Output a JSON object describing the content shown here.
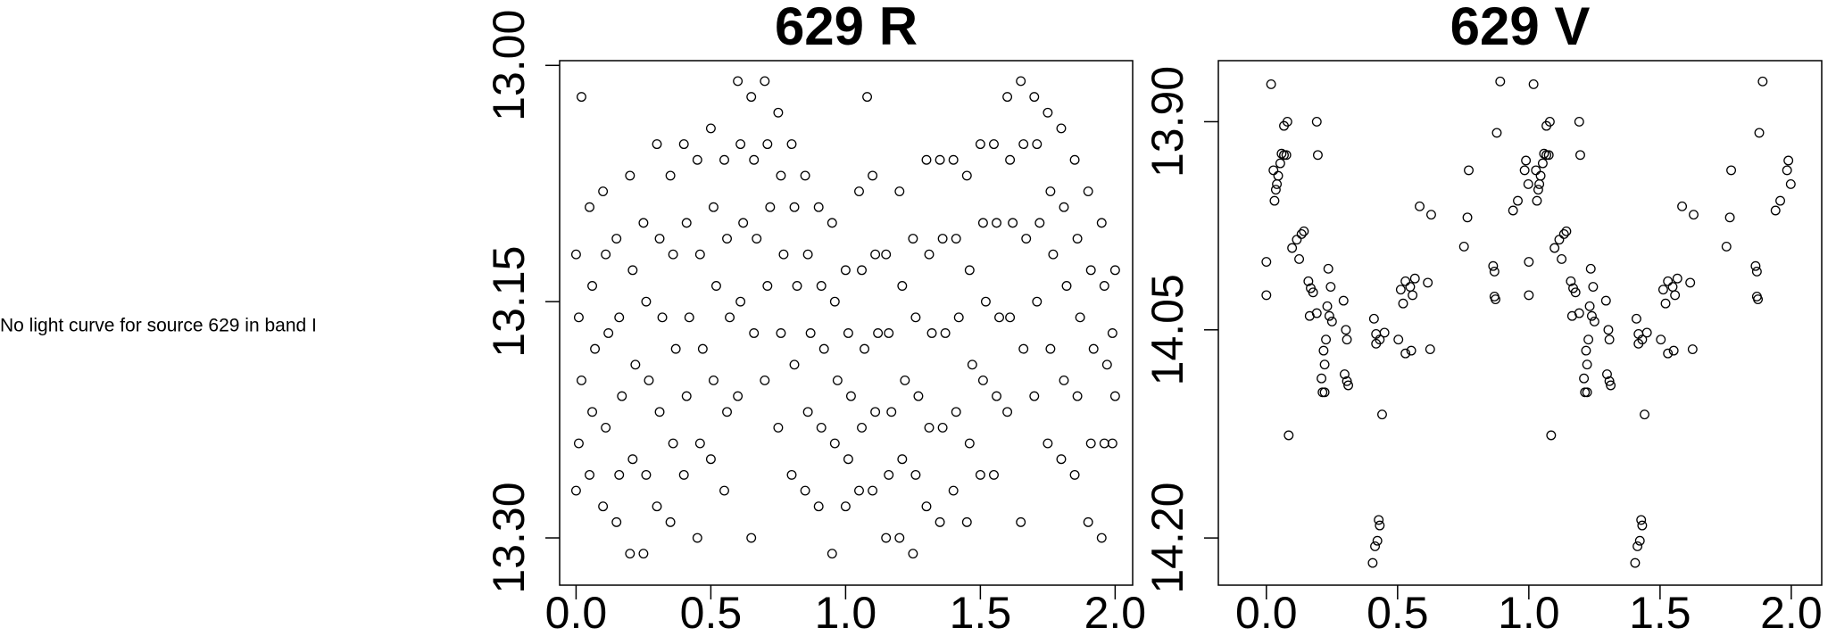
{
  "message": "No light curve for source 629 in band I",
  "chart_data": [
    {
      "type": "scatter",
      "title": "629 R",
      "color": "#000000",
      "xlim": [
        -0.061,
        2.065
      ],
      "ylim": [
        13.33,
        12.997
      ],
      "xticks": [
        {
          "value": 0,
          "label": "0.0"
        },
        0.5,
        {
          "value": 1,
          "label": "1.0"
        },
        1.5,
        {
          "value": 2,
          "label": "2.0"
        }
      ],
      "yticks": [
        {
          "value": 13,
          "label": "13.00"
        },
        13.15,
        {
          "value": 13.3,
          "label": "13.30"
        }
      ],
      "x": [
        0,
        0.01,
        0.02,
        0.01,
        0,
        0.05,
        0.06,
        0.07,
        0.06,
        0.05,
        0.1,
        0.11,
        0.12,
        0.11,
        0.1,
        0.15,
        0.16,
        0.17,
        0.16,
        0.15,
        0.2,
        0.21,
        0.22,
        0.21,
        0.2,
        0.25,
        0.26,
        0.27,
        0.26,
        0.25,
        0.3,
        0.31,
        0.32,
        0.31,
        0.3,
        0.35,
        0.36,
        0.37,
        0.36,
        0.35,
        0.4,
        0.41,
        0.42,
        0.41,
        0.4,
        0.45,
        0.46,
        0.47,
        0.46,
        0.45,
        0.5,
        0.51,
        0.52,
        0.51,
        0.5,
        0.55,
        0.56,
        0.57,
        0.56,
        0.55,
        0.6,
        0.61,
        0.62,
        0.61,
        0.6,
        0.65,
        0.66,
        0.67,
        0.66,
        0.65,
        0.7,
        0.71,
        0.72,
        0.71,
        0.7,
        0.75,
        0.76,
        0.77,
        0.76,
        0.75,
        0.8,
        0.81,
        0.82,
        0.81,
        0.8,
        0.85,
        0.86,
        0.87,
        0.86,
        0.85,
        0.9,
        0.91,
        0.92,
        0.91,
        0.9,
        0.95,
        0.96,
        0.97,
        0.96,
        0.95,
        1,
        1.01,
        1.02,
        1.01,
        1,
        1.05,
        1.06,
        1.07,
        1.06,
        1.05,
        1.1,
        1.11,
        1.12,
        1.11,
        1.1,
        1.15,
        1.16,
        1.17,
        1.16,
        1.15,
        1.2,
        1.21,
        1.22,
        1.21,
        1.2,
        1.25,
        1.26,
        1.27,
        1.26,
        1.25,
        1.3,
        1.31,
        1.32,
        1.31,
        1.3,
        1.35,
        1.36,
        1.37,
        1.36,
        1.35,
        1.4,
        1.41,
        1.42,
        1.41,
        1.4,
        1.45,
        1.46,
        1.47,
        1.46,
        1.45,
        1.5,
        1.51,
        1.52,
        1.51,
        1.5,
        1.55,
        1.56,
        1.57,
        1.56,
        1.55,
        1.6,
        1.61,
        1.62,
        1.61,
        1.6,
        1.65,
        1.66,
        1.67,
        1.66,
        1.65,
        1.7,
        1.71,
        1.72,
        1.71,
        1.7,
        1.75,
        1.76,
        1.77,
        1.76,
        1.75,
        1.8,
        1.81,
        1.82,
        1.81,
        1.8,
        1.85,
        1.86,
        1.87,
        1.86,
        1.85,
        1.9,
        1.91,
        1.92,
        1.91,
        1.9,
        1.95,
        1.96,
        1.97,
        1.96,
        1.95,
        2,
        1.99,
        2,
        1.99,
        0.02,
        1.08
      ],
      "y": [
        13.12,
        13.16,
        13.2,
        13.24,
        13.27,
        13.09,
        13.14,
        13.18,
        13.22,
        13.26,
        13.08,
        13.12,
        13.17,
        13.23,
        13.28,
        13.11,
        13.16,
        13.21,
        13.26,
        13.29,
        13.07,
        13.13,
        13.19,
        13.25,
        13.31,
        13.1,
        13.15,
        13.2,
        13.26,
        13.31,
        13.05,
        13.11,
        13.16,
        13.22,
        13.28,
        13.07,
        13.12,
        13.18,
        13.24,
        13.29,
        13.05,
        13.1,
        13.16,
        13.21,
        13.26,
        13.06,
        13.12,
        13.18,
        13.24,
        13.3,
        13.04,
        13.09,
        13.14,
        13.2,
        13.25,
        13.06,
        13.11,
        13.16,
        13.22,
        13.27,
        13.01,
        13.05,
        13.1,
        13.15,
        13.21,
        13.02,
        13.06,
        13.11,
        13.17,
        13.3,
        13.01,
        13.05,
        13.09,
        13.14,
        13.2,
        13.03,
        13.07,
        13.12,
        13.17,
        13.23,
        13.05,
        13.09,
        13.14,
        13.19,
        13.26,
        13.07,
        13.12,
        13.17,
        13.22,
        13.27,
        13.09,
        13.14,
        13.18,
        13.23,
        13.28,
        13.1,
        13.15,
        13.2,
        13.24,
        13.31,
        13.13,
        13.17,
        13.21,
        13.25,
        13.28,
        13.08,
        13.13,
        13.18,
        13.23,
        13.27,
        13.07,
        13.12,
        13.17,
        13.22,
        13.27,
        13.12,
        13.17,
        13.22,
        13.26,
        13.3,
        13.08,
        13.14,
        13.2,
        13.25,
        13.3,
        13.11,
        13.16,
        13.21,
        13.26,
        13.31,
        13.06,
        13.12,
        13.17,
        13.23,
        13.28,
        13.06,
        13.11,
        13.17,
        13.23,
        13.29,
        13.06,
        13.11,
        13.16,
        13.22,
        13.27,
        13.07,
        13.13,
        13.19,
        13.24,
        13.29,
        13.05,
        13.1,
        13.15,
        13.2,
        13.26,
        13.05,
        13.1,
        13.16,
        13.21,
        13.26,
        13.02,
        13.06,
        13.1,
        13.16,
        13.22,
        13.01,
        13.05,
        13.11,
        13.18,
        13.29,
        13.02,
        13.05,
        13.1,
        13.15,
        13.21,
        13.03,
        13.08,
        13.12,
        13.18,
        13.24,
        13.04,
        13.09,
        13.14,
        13.2,
        13.25,
        13.06,
        13.11,
        13.16,
        13.21,
        13.26,
        13.08,
        13.13,
        13.18,
        13.24,
        13.29,
        13.1,
        13.14,
        13.19,
        13.24,
        13.3,
        13.13,
        13.17,
        13.21,
        13.24,
        13.02,
        13.02
      ]
    },
    {
      "type": "scatter",
      "title": "629 V",
      "color": "#000000",
      "xlim": [
        -0.183,
        2.116
      ],
      "ylim": [
        14.234,
        13.856
      ],
      "xticks": [
        {
          "value": 0,
          "label": "0.0"
        },
        0.5,
        {
          "value": 1,
          "label": "1.0"
        },
        1.5,
        {
          "value": 2,
          "label": "2.0"
        }
      ],
      "yticks": [
        {
          "value": 13.9,
          "label": "13.90"
        },
        14.05,
        {
          "value": 14.2,
          "label": "14.20"
        }
      ],
      "x": [
        0,
        0,
        0.018,
        0.027,
        0.036,
        0.031,
        0.045,
        0.053,
        0.058,
        0.067,
        0.04,
        0.067,
        0.085,
        0.076,
        0.08,
        0.098,
        0.116,
        0.134,
        0.143,
        0.125,
        0.16,
        0.169,
        0.178,
        0.165,
        0.192,
        0.192,
        0.196,
        0.21,
        0.218,
        0.222,
        0.214,
        0.222,
        0.236,
        0.232,
        0.24,
        0.245,
        0.25,
        0.227,
        0.294,
        0.303,
        0.298,
        0.307,
        0.312,
        0.307,
        0.41,
        0.418,
        0.432,
        0.45,
        0.418,
        0.441,
        0.428,
        0.432,
        0.423,
        0.414,
        0.405,
        0.503,
        0.512,
        0.521,
        0.53,
        0.548,
        0.566,
        0.557,
        0.53,
        0.552,
        0.584,
        0.615,
        0.628,
        0.624,
        0.753,
        0.766,
        0.771,
        0.864,
        0.869,
        0.869,
        0.873,
        0.878,
        0.891,
        0.94,
        0.958,
        0.984,
        0.998,
        0.989,
        1,
        1,
        1.018,
        1.027,
        1.036,
        1.031,
        1.045,
        1.053,
        1.058,
        1.067,
        1.04,
        1.067,
        1.085,
        1.076,
        1.08,
        1.098,
        1.116,
        1.134,
        1.143,
        1.125,
        1.16,
        1.169,
        1.178,
        1.165,
        1.192,
        1.192,
        1.196,
        1.21,
        1.218,
        1.222,
        1.214,
        1.222,
        1.236,
        1.232,
        1.24,
        1.245,
        1.25,
        1.227,
        1.294,
        1.303,
        1.298,
        1.307,
        1.312,
        1.307,
        1.41,
        1.418,
        1.432,
        1.45,
        1.418,
        1.441,
        1.428,
        1.432,
        1.423,
        1.414,
        1.405,
        1.503,
        1.512,
        1.521,
        1.53,
        1.548,
        1.566,
        1.557,
        1.53,
        1.552,
        1.584,
        1.615,
        1.628,
        1.624,
        1.753,
        1.766,
        1.771,
        1.864,
        1.869,
        1.869,
        1.873,
        1.878,
        1.891,
        1.94,
        1.958,
        1.984,
        1.998,
        1.989
      ],
      "y": [
        14.001,
        14.025,
        13.873,
        13.935,
        13.949,
        13.957,
        13.939,
        13.93,
        13.923,
        13.903,
        13.945,
        13.924,
        14.126,
        13.924,
        13.9,
        13.991,
        13.985,
        13.981,
        13.979,
        13.999,
        14.015,
        14.02,
        14.023,
        14.04,
        14.038,
        13.9,
        13.924,
        14.085,
        14.065,
        14.075,
        14.095,
        14.095,
        14.006,
        14.033,
        14.04,
        14.019,
        14.044,
        14.057,
        14.029,
        14.05,
        14.082,
        14.087,
        14.09,
        14.057,
        14.042,
        14.053,
        14.057,
        14.052,
        14.06,
        14.111,
        14.187,
        14.191,
        14.202,
        14.206,
        14.218,
        14.057,
        14.021,
        14.031,
        14.015,
        14.019,
        14.013,
        14.025,
        14.067,
        14.065,
        13.961,
        14.016,
        13.967,
        14.064,
        13.99,
        13.969,
        13.935,
        14.004,
        14.008,
        14.026,
        14.028,
        13.908,
        13.871,
        13.964,
        13.957,
        13.935,
        13.945,
        13.928,
        14.001,
        14.025,
        13.873,
        13.935,
        13.949,
        13.957,
        13.939,
        13.93,
        13.923,
        13.903,
        13.945,
        13.924,
        14.126,
        13.924,
        13.9,
        13.991,
        13.985,
        13.981,
        13.979,
        13.999,
        14.015,
        14.02,
        14.023,
        14.04,
        14.038,
        13.9,
        13.924,
        14.085,
        14.065,
        14.075,
        14.095,
        14.095,
        14.006,
        14.033,
        14.04,
        14.019,
        14.044,
        14.057,
        14.029,
        14.05,
        14.082,
        14.087,
        14.09,
        14.057,
        14.042,
        14.053,
        14.057,
        14.052,
        14.06,
        14.111,
        14.187,
        14.191,
        14.202,
        14.206,
        14.218,
        14.057,
        14.021,
        14.031,
        14.015,
        14.019,
        14.013,
        14.025,
        14.067,
        14.065,
        13.961,
        14.016,
        13.967,
        14.064,
        13.99,
        13.969,
        13.935,
        14.004,
        14.008,
        14.026,
        14.028,
        13.908,
        13.871,
        13.964,
        13.957,
        13.935,
        13.945,
        13.928
      ]
    }
  ]
}
